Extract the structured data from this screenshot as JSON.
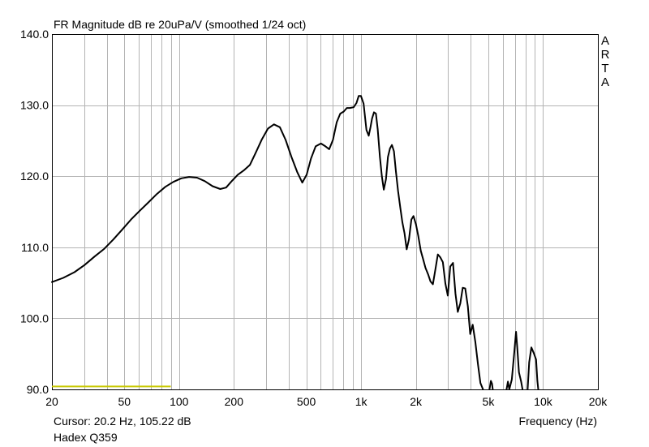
{
  "header": {
    "title": "FR Magnitude dB re 20uPa/V (smoothed 1/24 oct)",
    "brand_letters": [
      "A",
      "R",
      "T",
      "A"
    ]
  },
  "footer": {
    "cursor_readout": "Cursor: 20.2 Hz, 105.22 dB",
    "device_name": "Hadex Q359",
    "x_axis_label": "Frequency (Hz)"
  },
  "chart_data": {
    "type": "line",
    "title": "FR Magnitude dB re 20uPa/V (smoothed 1/24 oct)",
    "xlabel": "Frequency (Hz)",
    "ylabel": "",
    "x_scale": "log",
    "xlim": [
      20,
      20000
    ],
    "ylim": [
      90,
      140
    ],
    "grid": true,
    "x_ticks": [
      {
        "value": 20,
        "label": "20"
      },
      {
        "value": 50,
        "label": "50"
      },
      {
        "value": 100,
        "label": "100"
      },
      {
        "value": 200,
        "label": "200"
      },
      {
        "value": 500,
        "label": "500"
      },
      {
        "value": 1000,
        "label": "1k"
      },
      {
        "value": 2000,
        "label": "2k"
      },
      {
        "value": 5000,
        "label": "5k"
      },
      {
        "value": 10000,
        "label": "10k"
      },
      {
        "value": 20000,
        "label": "20k"
      }
    ],
    "y_ticks": [
      {
        "value": 90,
        "label": "90.0"
      },
      {
        "value": 100,
        "label": "100.0"
      },
      {
        "value": 110,
        "label": "110.0"
      },
      {
        "value": 120,
        "label": "120.0"
      },
      {
        "value": 130,
        "label": "130.0"
      },
      {
        "value": 140,
        "label": "140.0"
      }
    ],
    "colors": {
      "curve": "#000000",
      "grid": "#b4b4b4",
      "frame": "#000000",
      "marker": "#c8c800"
    },
    "marker_band": {
      "x_start": 20,
      "x_end": 90,
      "y": 90.3
    },
    "series": [
      {
        "color": "#000000",
        "points": [
          [
            20.0,
            105.1
          ],
          [
            23.1,
            105.7
          ],
          [
            26.6,
            106.5
          ],
          [
            30.2,
            107.5
          ],
          [
            34.3,
            108.7
          ],
          [
            38.8,
            109.8
          ],
          [
            43.5,
            111.1
          ],
          [
            48.7,
            112.5
          ],
          [
            54.4,
            113.9
          ],
          [
            60.6,
            115.1
          ],
          [
            67.7,
            116.3
          ],
          [
            75.5,
            117.5
          ],
          [
            84.0,
            118.5
          ],
          [
            93.0,
            119.2
          ],
          [
            102.8,
            119.7
          ],
          [
            113.5,
            119.9
          ],
          [
            125.5,
            119.8
          ],
          [
            138.5,
            119.3
          ],
          [
            152.7,
            118.6
          ],
          [
            168.3,
            118.2
          ],
          [
            181.2,
            118.4
          ],
          [
            194.4,
            119.3
          ],
          [
            210.0,
            120.2
          ],
          [
            226.1,
            120.8
          ],
          [
            244.9,
            121.6
          ],
          [
            263.6,
            123.3
          ],
          [
            285.1,
            125.2
          ],
          [
            307.7,
            126.7
          ],
          [
            331.9,
            127.3
          ],
          [
            357.9,
            126.9
          ],
          [
            384.8,
            125.1
          ],
          [
            414.2,
            122.7
          ],
          [
            445.4,
            120.6
          ],
          [
            474.9,
            119.1
          ],
          [
            502.1,
            120.2
          ],
          [
            530.6,
            122.5
          ],
          [
            562.5,
            124.2
          ],
          [
            601.5,
            124.6
          ],
          [
            637.2,
            124.2
          ],
          [
            668.1,
            123.8
          ],
          [
            700.4,
            125.1
          ],
          [
            734.4,
            127.6
          ],
          [
            768.0,
            128.8
          ],
          [
            802.7,
            129.1
          ],
          [
            834.0,
            129.6
          ],
          [
            867.8,
            129.6
          ],
          [
            910.0,
            129.7
          ],
          [
            942.7,
            130.3
          ],
          [
            970.3,
            131.3
          ],
          [
            997.9,
            131.3
          ],
          [
            1032.4,
            130.2
          ],
          [
            1069.9,
            126.5
          ],
          [
            1100.4,
            125.7
          ],
          [
            1125.8,
            126.9
          ],
          [
            1148.7,
            128.1
          ],
          [
            1176.4,
            129.0
          ],
          [
            1205.7,
            128.8
          ],
          [
            1234.1,
            126.6
          ],
          [
            1267.8,
            122.7
          ],
          [
            1299.4,
            120.0
          ],
          [
            1332.1,
            118.1
          ],
          [
            1369.3,
            119.6
          ],
          [
            1404.6,
            122.7
          ],
          [
            1441.0,
            123.9
          ],
          [
            1476.7,
            124.4
          ],
          [
            1514.1,
            123.5
          ],
          [
            1552.4,
            120.7
          ],
          [
            1595.7,
            117.9
          ],
          [
            1640.5,
            115.6
          ],
          [
            1684.8,
            113.5
          ],
          [
            1730.6,
            112.0
          ],
          [
            1780.0,
            109.7
          ],
          [
            1832.2,
            111.1
          ],
          [
            1888.0,
            113.9
          ],
          [
            1941.0,
            114.4
          ],
          [
            2002.5,
            113.2
          ],
          [
            2061.8,
            111.6
          ],
          [
            2126.8,
            109.5
          ],
          [
            2187.9,
            108.4
          ],
          [
            2259.4,
            107.1
          ],
          [
            2333.3,
            106.2
          ],
          [
            2403.7,
            105.2
          ],
          [
            2479.7,
            104.8
          ],
          [
            2559.8,
            106.9
          ],
          [
            2638.3,
            109.0
          ],
          [
            2723.1,
            108.6
          ],
          [
            2811.6,
            107.9
          ],
          [
            2903.0,
            104.9
          ],
          [
            2996.2,
            103.2
          ],
          [
            3089.0,
            107.3
          ],
          [
            3196.5,
            107.8
          ],
          [
            3297.2,
            103.5
          ],
          [
            3396.6,
            100.9
          ],
          [
            3508.3,
            102.1
          ],
          [
            3617.1,
            104.3
          ],
          [
            3733.5,
            104.2
          ],
          [
            3857.6,
            101.7
          ],
          [
            3975.7,
            97.8
          ],
          [
            4104.3,
            99.1
          ],
          [
            4240.3,
            96.7
          ],
          [
            4385.0,
            93.5
          ],
          [
            4525.8,
            90.9
          ],
          [
            4677.1,
            90.0
          ]
        ]
      },
      {
        "color": "#000000",
        "points": [
          [
            5076.1,
            90.0
          ],
          [
            5167.1,
            91.2
          ],
          [
            5239.4,
            90.8
          ],
          [
            5286.1,
            90.0
          ]
        ]
      },
      {
        "color": "#000000",
        "points": [
          [
            6299.3,
            90.0
          ],
          [
            6405.1,
            91.1
          ],
          [
            6519.3,
            90.0
          ],
          [
            6727.8,
            91.4
          ],
          [
            6946.7,
            95.3
          ],
          [
            7101.9,
            98.1
          ],
          [
            7208.2,
            95.9
          ],
          [
            7367.6,
            92.4
          ],
          [
            7573.6,
            91.1
          ],
          [
            7709.8,
            90.0
          ]
        ]
      },
      {
        "color": "#000000",
        "points": [
          [
            8223.7,
            90.0
          ],
          [
            8384.4,
            93.8
          ],
          [
            8622.6,
            95.9
          ],
          [
            8893.8,
            95.1
          ],
          [
            9152.8,
            94.2
          ],
          [
            9303.4,
            91.2
          ],
          [
            9404.0,
            90.0
          ]
        ]
      }
    ]
  }
}
